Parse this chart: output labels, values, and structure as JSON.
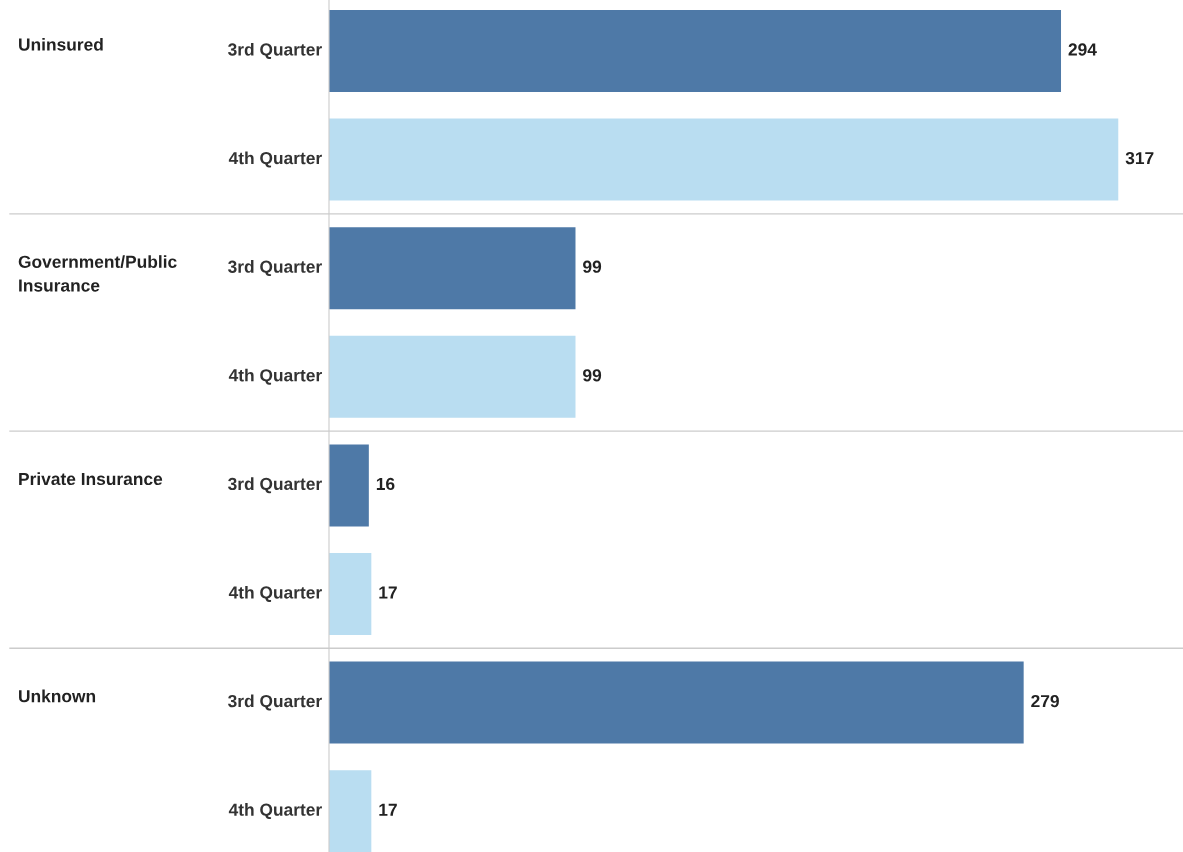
{
  "chart_data": {
    "type": "bar",
    "orientation": "horizontal",
    "categories": [
      "Uninsured",
      "Government/Public Insurance",
      "Private Insurance",
      "Unknown"
    ],
    "series": [
      {
        "name": "3rd Quarter",
        "color": "#4e79a7",
        "values": [
          294,
          99,
          16,
          279
        ]
      },
      {
        "name": "4th Quarter",
        "color": "#b9ddf1",
        "values": [
          317,
          99,
          17,
          17
        ]
      }
    ],
    "data_labels": true
  }
}
